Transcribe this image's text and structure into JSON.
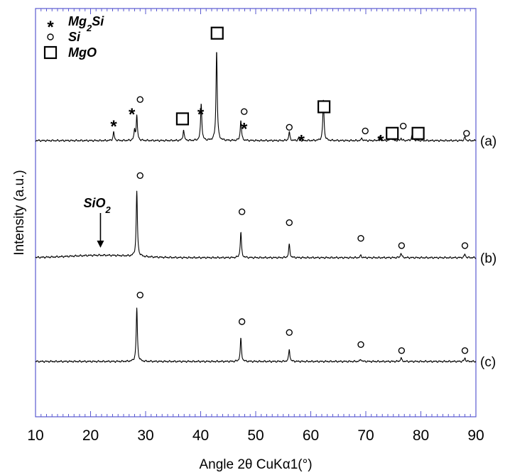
{
  "chart_data": {
    "type": "line",
    "xlabel": "Angle 2θ CuKα1(°)",
    "ylabel": "Intensity (a.u.)",
    "xlim": [
      10,
      90
    ],
    "x_ticks": [
      10,
      20,
      30,
      40,
      50,
      60,
      70,
      80,
      90
    ],
    "grid": false,
    "legend": {
      "placement": "top-left",
      "entries": [
        {
          "symbol": "star",
          "label_main": "Mg",
          "label_sub": "2",
          "label_tail": "Si"
        },
        {
          "symbol": "circle",
          "label_main": "Si",
          "label_sub": "",
          "label_tail": ""
        },
        {
          "symbol": "square",
          "label_main": "MgO",
          "label_sub": "",
          "label_tail": ""
        }
      ]
    },
    "series": [
      {
        "name": "(a)",
        "baseline": 0,
        "peaks": [
          {
            "x": 24.2,
            "h": 0.07
          },
          {
            "x": 28.0,
            "h": 0.08
          },
          {
            "x": 28.4,
            "h": 0.2
          },
          {
            "x": 36.9,
            "h": 0.09
          },
          {
            "x": 40.1,
            "h": 0.31
          },
          {
            "x": 42.9,
            "h": 0.75
          },
          {
            "x": 47.3,
            "h": 0.17
          },
          {
            "x": 56.1,
            "h": 0.07
          },
          {
            "x": 57.8,
            "h": 0.02
          },
          {
            "x": 62.3,
            "h": 0.34
          },
          {
            "x": 69.3,
            "h": 0.02
          },
          {
            "x": 72.5,
            "h": 0.03
          },
          {
            "x": 74.6,
            "h": 0.04
          },
          {
            "x": 76.4,
            "h": 0.02
          },
          {
            "x": 78.5,
            "h": 0.08
          },
          {
            "x": 88.0,
            "h": 0.03
          }
        ],
        "annotations": [
          {
            "symbol": "star",
            "x": 24.2,
            "h": 0.14
          },
          {
            "symbol": "star",
            "x": 27.5,
            "h": 0.24
          },
          {
            "symbol": "circle",
            "x": 29.0,
            "h": 0.34
          },
          {
            "symbol": "square",
            "x": 36.7,
            "h": 0.18
          },
          {
            "symbol": "star",
            "x": 40.0,
            "h": 0.24
          },
          {
            "symbol": "square",
            "x": 43.0,
            "h": 0.89
          },
          {
            "symbol": "circle",
            "x": 47.9,
            "h": 0.24
          },
          {
            "symbol": "star",
            "x": 47.9,
            "h": 0.12
          },
          {
            "symbol": "circle",
            "x": 56.1,
            "h": 0.11
          },
          {
            "symbol": "star",
            "x": 58.3,
            "h": 0.02
          },
          {
            "symbol": "square",
            "x": 62.4,
            "h": 0.28
          },
          {
            "symbol": "circle",
            "x": 69.9,
            "h": 0.08
          },
          {
            "symbol": "star",
            "x": 72.7,
            "h": 0.02
          },
          {
            "symbol": "square",
            "x": 74.8,
            "h": 0.06
          },
          {
            "symbol": "circle",
            "x": 76.8,
            "h": 0.12
          },
          {
            "symbol": "square",
            "x": 79.5,
            "h": 0.06
          },
          {
            "symbol": "circle",
            "x": 88.3,
            "h": 0.06
          }
        ]
      },
      {
        "name": "(b)",
        "baseline": -0.97,
        "hump": {
          "center": 22,
          "width": 8,
          "h": 0.02
        },
        "peaks": [
          {
            "x": 28.4,
            "h": 0.54
          },
          {
            "x": 47.3,
            "h": 0.21
          },
          {
            "x": 56.1,
            "h": 0.11
          },
          {
            "x": 69.1,
            "h": 0.02
          },
          {
            "x": 76.4,
            "h": 0.04
          },
          {
            "x": 88.0,
            "h": 0.03
          }
        ],
        "annotations": [
          {
            "symbol": "circle",
            "x": 29.0,
            "h": 0.68
          },
          {
            "symbol": "circle",
            "x": 47.5,
            "h": 0.38
          },
          {
            "symbol": "circle",
            "x": 56.1,
            "h": 0.29
          },
          {
            "symbol": "circle",
            "x": 69.1,
            "h": 0.16
          },
          {
            "symbol": "circle",
            "x": 76.5,
            "h": 0.1
          },
          {
            "symbol": "circle",
            "x": 88.0,
            "h": 0.1
          }
        ]
      },
      {
        "name": "(c)",
        "baseline": -1.83,
        "peaks": [
          {
            "x": 28.4,
            "h": 0.44
          },
          {
            "x": 47.3,
            "h": 0.19
          },
          {
            "x": 56.1,
            "h": 0.1
          },
          {
            "x": 69.1,
            "h": 0.02
          },
          {
            "x": 76.4,
            "h": 0.03
          },
          {
            "x": 88.0,
            "h": 0.03
          }
        ],
        "annotations": [
          {
            "symbol": "circle",
            "x": 29.0,
            "h": 0.55
          },
          {
            "symbol": "circle",
            "x": 47.5,
            "h": 0.33
          },
          {
            "symbol": "circle",
            "x": 56.1,
            "h": 0.24
          },
          {
            "symbol": "circle",
            "x": 69.1,
            "h": 0.14
          },
          {
            "symbol": "circle",
            "x": 76.5,
            "h": 0.09
          },
          {
            "symbol": "circle",
            "x": 88.0,
            "h": 0.09
          }
        ]
      }
    ],
    "arrow_annotation": {
      "label_main": "SiO",
      "label_sub": "2",
      "x": 21.8,
      "series": "(b)"
    }
  }
}
